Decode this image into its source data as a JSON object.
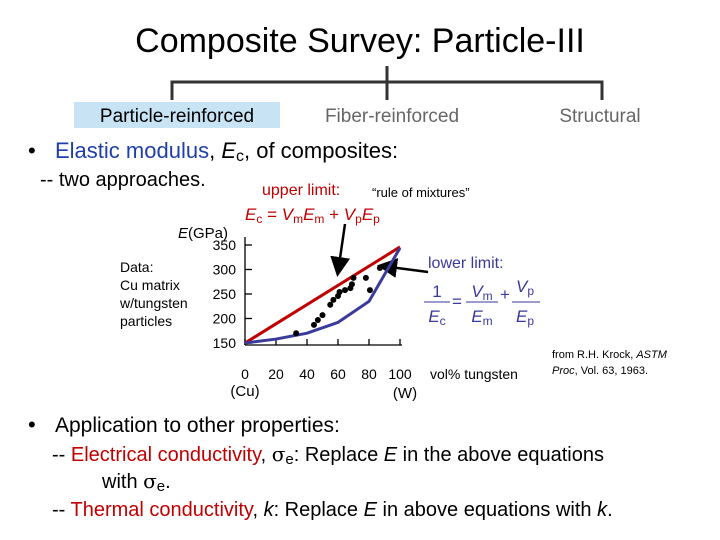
{
  "header": {
    "title": "Composite Survey: Particle-III"
  },
  "tabs": [
    "Particle-reinforced",
    "Fiber-reinforced",
    "Structural"
  ],
  "bullet1": [
    "Elastic modulus",
    ", ",
    "E",
    "c",
    ", of composites:"
  ],
  "sub1": "-- two approaches.",
  "chart_data": {
    "type": "scatter",
    "y_label": [
      "E",
      "(GPa)"
    ],
    "note": [
      "Data:",
      "Cu matrix",
      "w/tungsten",
      "particles"
    ],
    "x_label": "vol% tungsten",
    "x_end_labels": [
      "(Cu)",
      "(W)"
    ],
    "xlim": [
      0,
      100
    ],
    "xticks": [
      0,
      20,
      40,
      60,
      80,
      100
    ],
    "ylim": [
      150,
      350
    ],
    "yticks": [
      150,
      200,
      250,
      300,
      350
    ],
    "x": [
      33,
      44.5,
      47,
      50,
      55,
      57,
      60,
      61,
      64.5,
      68,
      69,
      70,
      78,
      80.6,
      87
    ],
    "y": [
      170,
      187,
      197,
      207,
      228,
      238,
      246,
      254,
      258,
      262,
      270,
      283,
      283,
      258,
      303
    ],
    "point_color": "#000000",
    "bounds": [
      {
        "name": "upper limit:",
        "color": "#c00000",
        "x": [
          0,
          100
        ],
        "y": [
          150,
          346
        ]
      },
      {
        "name": "lower limit:",
        "color": "#3a3a9a",
        "x": [
          0,
          20,
          40,
          60,
          80,
          100
        ],
        "y": [
          150,
          158,
          170,
          192,
          235,
          344
        ]
      }
    ],
    "upper_note": "“rule of mixtures”",
    "upper_eq": [
      "E",
      "c",
      " = ",
      "V",
      "m",
      "E",
      "m",
      " + ",
      "V",
      "p",
      "E",
      "p"
    ],
    "lower_eq": {
      "lhs_num": "1",
      "lhs_den": [
        "E",
        "c"
      ],
      "eq": "=",
      "t1_num": [
        "V",
        "m"
      ],
      "t1_den": [
        "E",
        "m"
      ],
      "plus": "+",
      "t2_num": [
        "V",
        "p"
      ],
      "t2_den": [
        "E",
        "p"
      ]
    }
  },
  "source": [
    "from R.H. Krock, ",
    "ASTM",
    "Proc",
    ", Vol. 63, 1963."
  ],
  "bullet2": "Application to other properties:",
  "line1": [
    "-- ",
    "Electrical conductivity",
    ", ",
    "σ",
    "e",
    ":  Replace ",
    "E",
    " in the above equations"
  ],
  "line1b": [
    "with ",
    "σ",
    "e",
    "."
  ],
  "line2": [
    "-- ",
    "Thermal conductivity",
    ", ",
    "k",
    ":  Replace ",
    "E",
    " in above equations with ",
    "k",
    "."
  ]
}
